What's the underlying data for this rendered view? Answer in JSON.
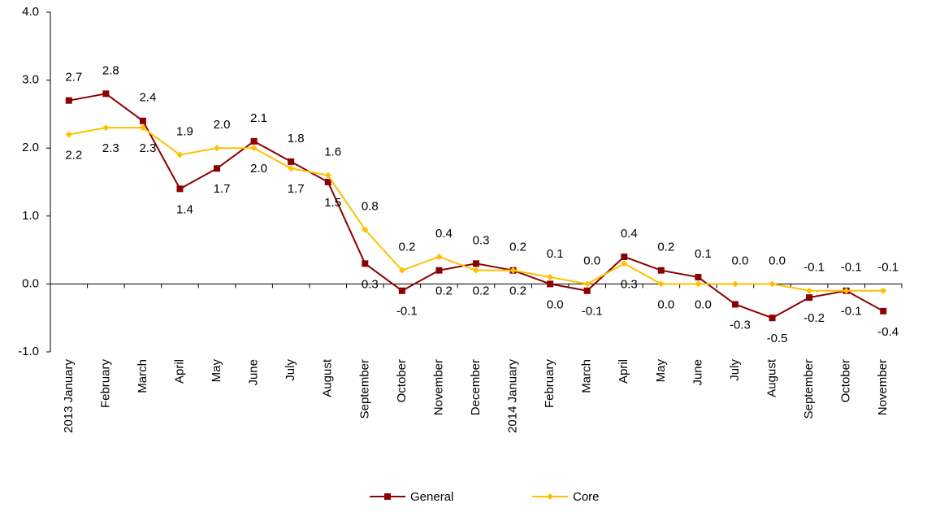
{
  "chart_data": {
    "type": "line",
    "categories": [
      "2013 January",
      "February",
      "March",
      "April",
      "May",
      "June",
      "July",
      "August",
      "September",
      "October",
      "November",
      "December",
      "2014 January",
      "February",
      "March",
      "April",
      "May",
      "June",
      "July",
      "August",
      "September",
      "October",
      "November"
    ],
    "series": [
      {
        "name": "General",
        "color": "#8b0000",
        "marker": "square",
        "values": [
          2.7,
          2.8,
          2.4,
          1.4,
          1.7,
          2.1,
          1.8,
          1.5,
          0.3,
          -0.1,
          0.2,
          0.3,
          0.2,
          0.0,
          -0.1,
          0.4,
          0.2,
          0.1,
          -0.3,
          -0.5,
          -0.2,
          -0.1,
          -0.4
        ],
        "value_labels": [
          "2.7",
          "2.8",
          "2.4",
          "1.4",
          "1.7",
          "2.1",
          "1.8",
          "1.5",
          "0.3",
          "-0.1",
          "0.2",
          "0.3",
          "0.2",
          "0.0",
          "-0.1",
          "0.4",
          "0.2",
          "0.1",
          "-0.3",
          "-0.5",
          "-0.2",
          "-0.1",
          "-0.4"
        ]
      },
      {
        "name": "Core",
        "color": "#ffc000",
        "marker": "diamond",
        "values": [
          2.2,
          2.3,
          2.3,
          1.9,
          2.0,
          2.0,
          1.7,
          1.6,
          0.8,
          0.2,
          0.4,
          0.2,
          0.2,
          0.1,
          0.0,
          0.3,
          0.0,
          0.0,
          0.0,
          0.0,
          -0.1,
          -0.1,
          -0.1
        ],
        "value_labels": [
          "2.2",
          "2.3",
          "2.3",
          "1.9",
          "2.0",
          "2.0",
          "1.7",
          "1.6",
          "0.8",
          "0.2",
          "0.4",
          "0.2",
          "0.2",
          "0.1",
          "0.0",
          "0.3",
          "0.0",
          "0.0",
          "0.0",
          "0.0",
          "-0.1",
          "-0.1",
          "-0.1"
        ]
      }
    ],
    "ylim": [
      -1.0,
      4.0
    ],
    "yticks": [
      {
        "value": -1.0,
        "label": "-1.0"
      },
      {
        "value": 0.0,
        "label": "0.0"
      },
      {
        "value": 1.0,
        "label": "1.0"
      },
      {
        "value": 2.0,
        "label": "2.0"
      },
      {
        "value": 3.0,
        "label": "3.0"
      },
      {
        "value": 4.0,
        "label": "4.0"
      }
    ],
    "grid": false,
    "legend": "bottom"
  }
}
